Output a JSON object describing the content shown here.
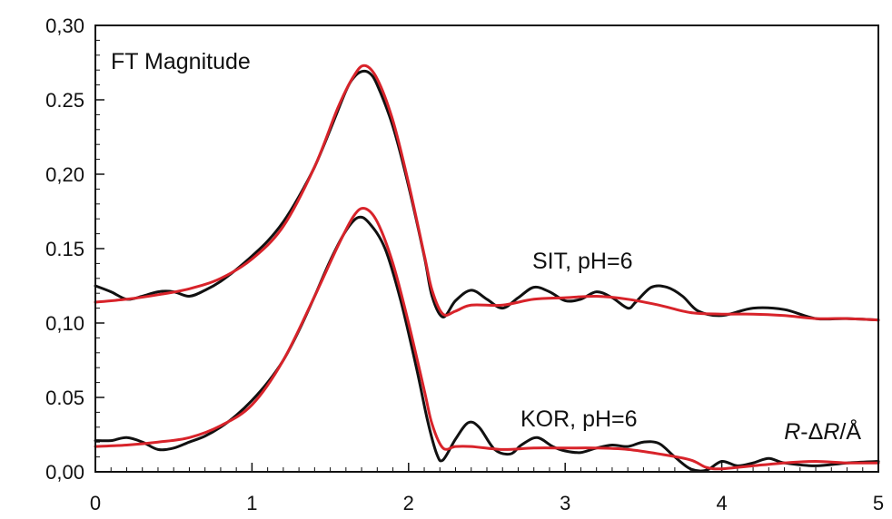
{
  "chart_data": {
    "type": "line",
    "title": "",
    "xlabel": "R-ΔR/Å",
    "ylabel": "FT Magnitude",
    "xlim": [
      0,
      5
    ],
    "ylim": [
      0,
      0.3
    ],
    "x_ticks": [
      0,
      1,
      2,
      3,
      4,
      5
    ],
    "x_tick_labels": [
      "0",
      "1",
      "2",
      "3",
      "4",
      "5"
    ],
    "y_ticks": [
      0,
      0.05,
      0.1,
      0.15,
      0.2,
      0.25,
      0.3
    ],
    "y_tick_labels": [
      "0,00",
      "0.05",
      "0,10",
      "0.15",
      "0,20",
      "0.25",
      "0,30"
    ],
    "grid": false,
    "colors": {
      "experimental": "#111111",
      "fit": "#d8232a",
      "axis": "#111111"
    },
    "annotations": [
      {
        "text": "SIT, pH=6",
        "x": 3.05,
        "y": 0.14
      },
      {
        "text": "KOR, pH=6",
        "x": 2.95,
        "y": 0.034
      }
    ],
    "series": [
      {
        "group": "SIT, pH=6",
        "role": "experimental",
        "points": [
          [
            0.0,
            0.125
          ],
          [
            0.1,
            0.121
          ],
          [
            0.2,
            0.116
          ],
          [
            0.3,
            0.118
          ],
          [
            0.4,
            0.121
          ],
          [
            0.5,
            0.121
          ],
          [
            0.6,
            0.118
          ],
          [
            0.7,
            0.122
          ],
          [
            0.8,
            0.128
          ],
          [
            0.9,
            0.136
          ],
          [
            1.0,
            0.145
          ],
          [
            1.1,
            0.155
          ],
          [
            1.2,
            0.168
          ],
          [
            1.3,
            0.185
          ],
          [
            1.4,
            0.205
          ],
          [
            1.5,
            0.23
          ],
          [
            1.6,
            0.256
          ],
          [
            1.65,
            0.265
          ],
          [
            1.7,
            0.269
          ],
          [
            1.75,
            0.268
          ],
          [
            1.8,
            0.26
          ],
          [
            1.9,
            0.232
          ],
          [
            2.0,
            0.192
          ],
          [
            2.1,
            0.145
          ],
          [
            2.15,
            0.118
          ],
          [
            2.22,
            0.104
          ],
          [
            2.3,
            0.115
          ],
          [
            2.4,
            0.122
          ],
          [
            2.5,
            0.116
          ],
          [
            2.6,
            0.11
          ],
          [
            2.7,
            0.117
          ],
          [
            2.8,
            0.124
          ],
          [
            2.9,
            0.121
          ],
          [
            3.0,
            0.115
          ],
          [
            3.1,
            0.116
          ],
          [
            3.2,
            0.121
          ],
          [
            3.3,
            0.117
          ],
          [
            3.4,
            0.11
          ],
          [
            3.45,
            0.114
          ],
          [
            3.55,
            0.124
          ],
          [
            3.65,
            0.124
          ],
          [
            3.75,
            0.118
          ],
          [
            3.85,
            0.108
          ],
          [
            4.0,
            0.105
          ],
          [
            4.2,
            0.11
          ],
          [
            4.4,
            0.109
          ],
          [
            4.6,
            0.103
          ],
          [
            4.8,
            0.103
          ],
          [
            5.0,
            0.102
          ]
        ]
      },
      {
        "group": "SIT, pH=6",
        "role": "fit",
        "points": [
          [
            0.0,
            0.114
          ],
          [
            0.2,
            0.116
          ],
          [
            0.4,
            0.119
          ],
          [
            0.6,
            0.123
          ],
          [
            0.8,
            0.13
          ],
          [
            1.0,
            0.143
          ],
          [
            1.2,
            0.165
          ],
          [
            1.4,
            0.205
          ],
          [
            1.55,
            0.245
          ],
          [
            1.65,
            0.266
          ],
          [
            1.72,
            0.273
          ],
          [
            1.8,
            0.264
          ],
          [
            1.9,
            0.236
          ],
          [
            2.0,
            0.194
          ],
          [
            2.1,
            0.146
          ],
          [
            2.15,
            0.122
          ],
          [
            2.22,
            0.106
          ],
          [
            2.3,
            0.108
          ],
          [
            2.4,
            0.112
          ],
          [
            2.6,
            0.112
          ],
          [
            2.8,
            0.116
          ],
          [
            3.0,
            0.117
          ],
          [
            3.2,
            0.118
          ],
          [
            3.4,
            0.116
          ],
          [
            3.6,
            0.112
          ],
          [
            3.8,
            0.107
          ],
          [
            4.0,
            0.106
          ],
          [
            4.2,
            0.106
          ],
          [
            4.4,
            0.105
          ],
          [
            4.6,
            0.103
          ],
          [
            4.8,
            0.103
          ],
          [
            5.0,
            0.102
          ]
        ]
      },
      {
        "group": "KOR, pH=6",
        "role": "experimental",
        "points": [
          [
            0.0,
            0.021
          ],
          [
            0.1,
            0.021
          ],
          [
            0.2,
            0.023
          ],
          [
            0.3,
            0.02
          ],
          [
            0.4,
            0.015
          ],
          [
            0.5,
            0.016
          ],
          [
            0.6,
            0.02
          ],
          [
            0.7,
            0.024
          ],
          [
            0.8,
            0.03
          ],
          [
            0.9,
            0.038
          ],
          [
            1.0,
            0.048
          ],
          [
            1.1,
            0.06
          ],
          [
            1.2,
            0.075
          ],
          [
            1.3,
            0.095
          ],
          [
            1.4,
            0.118
          ],
          [
            1.5,
            0.142
          ],
          [
            1.6,
            0.162
          ],
          [
            1.68,
            0.171
          ],
          [
            1.75,
            0.167
          ],
          [
            1.85,
            0.15
          ],
          [
            1.95,
            0.115
          ],
          [
            2.05,
            0.07
          ],
          [
            2.12,
            0.035
          ],
          [
            2.18,
            0.012
          ],
          [
            2.22,
            0.008
          ],
          [
            2.3,
            0.022
          ],
          [
            2.38,
            0.033
          ],
          [
            2.45,
            0.03
          ],
          [
            2.55,
            0.015
          ],
          [
            2.65,
            0.012
          ],
          [
            2.72,
            0.018
          ],
          [
            2.82,
            0.023
          ],
          [
            2.92,
            0.017
          ],
          [
            3.0,
            0.014
          ],
          [
            3.1,
            0.013
          ],
          [
            3.2,
            0.016
          ],
          [
            3.3,
            0.018
          ],
          [
            3.4,
            0.017
          ],
          [
            3.5,
            0.02
          ],
          [
            3.6,
            0.019
          ],
          [
            3.7,
            0.01
          ],
          [
            3.8,
            0.002
          ],
          [
            3.9,
            0.001
          ],
          [
            4.0,
            0.007
          ],
          [
            4.1,
            0.004
          ],
          [
            4.2,
            0.006
          ],
          [
            4.3,
            0.009
          ],
          [
            4.4,
            0.006
          ],
          [
            4.6,
            0.004
          ],
          [
            4.8,
            0.006
          ],
          [
            5.0,
            0.007
          ]
        ]
      },
      {
        "group": "KOR, pH=6",
        "role": "fit",
        "points": [
          [
            0.0,
            0.017
          ],
          [
            0.2,
            0.018
          ],
          [
            0.4,
            0.02
          ],
          [
            0.6,
            0.023
          ],
          [
            0.8,
            0.031
          ],
          [
            1.0,
            0.045
          ],
          [
            1.2,
            0.075
          ],
          [
            1.4,
            0.118
          ],
          [
            1.55,
            0.152
          ],
          [
            1.65,
            0.172
          ],
          [
            1.72,
            0.177
          ],
          [
            1.8,
            0.168
          ],
          [
            1.9,
            0.14
          ],
          [
            2.0,
            0.1
          ],
          [
            2.1,
            0.055
          ],
          [
            2.15,
            0.032
          ],
          [
            2.22,
            0.016
          ],
          [
            2.3,
            0.017
          ],
          [
            2.4,
            0.017
          ],
          [
            2.6,
            0.015
          ],
          [
            2.8,
            0.016
          ],
          [
            3.0,
            0.016
          ],
          [
            3.2,
            0.016
          ],
          [
            3.4,
            0.015
          ],
          [
            3.6,
            0.012
          ],
          [
            3.8,
            0.008
          ],
          [
            3.9,
            0.003
          ],
          [
            4.0,
            0.002
          ],
          [
            4.2,
            0.004
          ],
          [
            4.4,
            0.006
          ],
          [
            4.6,
            0.007
          ],
          [
            4.8,
            0.006
          ],
          [
            5.0,
            0.006
          ]
        ]
      }
    ]
  }
}
